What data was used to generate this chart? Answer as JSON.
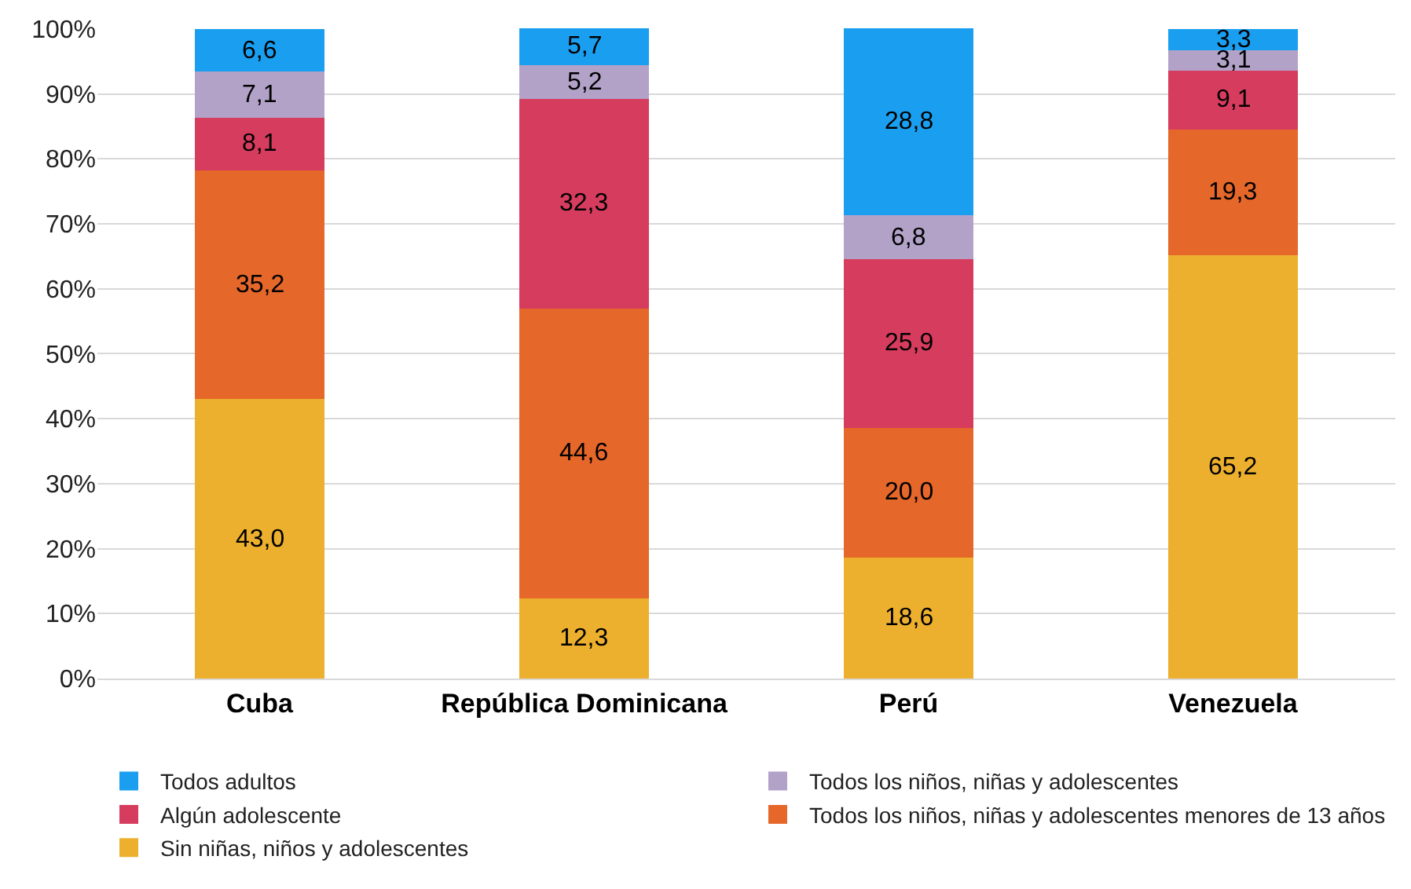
{
  "chart_data": {
    "type": "bar",
    "stacked": true,
    "categories": [
      "Cuba",
      "República Dominicana",
      "Perú",
      "Venezuela"
    ],
    "series": [
      {
        "name": "Sin niñas, niños y adolescentes",
        "color": "#ecb02e",
        "values": [
          43.0,
          12.3,
          18.6,
          65.2
        ],
        "value_labels": [
          "43,0",
          "12,3",
          "18,6",
          "65,2"
        ]
      },
      {
        "name": "Todos los niños, niñas y adolescentes menores de 13 años",
        "color": "#e5672a",
        "values": [
          35.2,
          44.6,
          20.0,
          19.3
        ],
        "value_labels": [
          "35,2",
          "44,6",
          "20,0",
          "19,3"
        ]
      },
      {
        "name": "Algún adolescente",
        "color": "#d63c5e",
        "values": [
          8.1,
          32.3,
          25.9,
          9.1
        ],
        "value_labels": [
          "8,1",
          "32,3",
          "25,9",
          "9,1"
        ]
      },
      {
        "name": "Todos los niños, niñas y adolescentes",
        "color": "#b2a2c8",
        "values": [
          7.1,
          5.2,
          6.8,
          3.1
        ],
        "value_labels": [
          "7,1",
          "5,2",
          "6,8",
          "3,1"
        ]
      },
      {
        "name": "Todos adultos",
        "color": "#1a9ff0",
        "values": [
          6.6,
          5.7,
          28.8,
          3.3
        ],
        "value_labels": [
          "6,6",
          "5,7",
          "28,8",
          "3,3"
        ]
      }
    ],
    "ylim": [
      0,
      100.1
    ],
    "yticks": [
      {
        "value": 0,
        "label": "0%"
      },
      {
        "value": 10,
        "label": "10%"
      },
      {
        "value": 20,
        "label": "20%"
      },
      {
        "value": 30,
        "label": "30%"
      },
      {
        "value": 40,
        "label": "40%"
      },
      {
        "value": 50,
        "label": "50%"
      },
      {
        "value": 60,
        "label": "60%"
      },
      {
        "value": 70,
        "label": "70%"
      },
      {
        "value": 80,
        "label": "80%"
      },
      {
        "value": 90,
        "label": "90%"
      },
      {
        "value": 100,
        "label": "100%"
      }
    ],
    "grid": "y",
    "legend": "bottom"
  }
}
